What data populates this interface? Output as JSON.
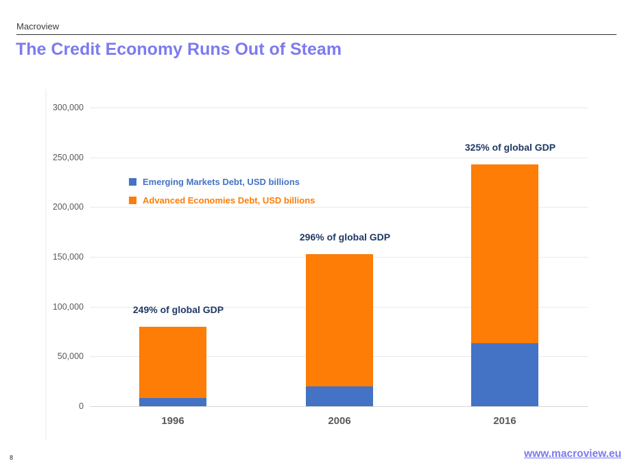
{
  "header": {
    "brand": "Macroview",
    "title": "The Credit Economy Runs Out of Steam"
  },
  "footer": {
    "page_number": "8",
    "link": "www.macroview.eu"
  },
  "colors": {
    "accent_purple": "#7d7af0",
    "emerging_blue": "#4472c4",
    "advanced_orange": "#fd7d06",
    "annotation_navy": "#1f3864",
    "axis_gray": "#595959"
  },
  "chart_data": {
    "type": "bar",
    "stacked": true,
    "title": "",
    "xlabel": "",
    "ylabel": "",
    "categories": [
      "1996",
      "2006",
      "2016"
    ],
    "series": [
      {
        "name": "Emerging Markets Debt, USD billions",
        "color": "#4472c4",
        "values": [
          8000,
          20000,
          63500
        ]
      },
      {
        "name": "Advanced Economies Debt, USD billions",
        "color": "#fd7d06",
        "values": [
          71500,
          132500,
          179500
        ]
      }
    ],
    "totals": [
      79500,
      152500,
      243000
    ],
    "annotations": [
      "249% of global GDP",
      "296% of global GDP",
      "325% of global GDP"
    ],
    "ylim": [
      0,
      300000
    ],
    "ytick_interval": 50000,
    "yticks": [
      "300,000",
      "250,000",
      "200,000",
      "150,000",
      "100,000",
      "50,000",
      "0"
    ],
    "grid": true,
    "legend_position": "inside-top-left"
  }
}
